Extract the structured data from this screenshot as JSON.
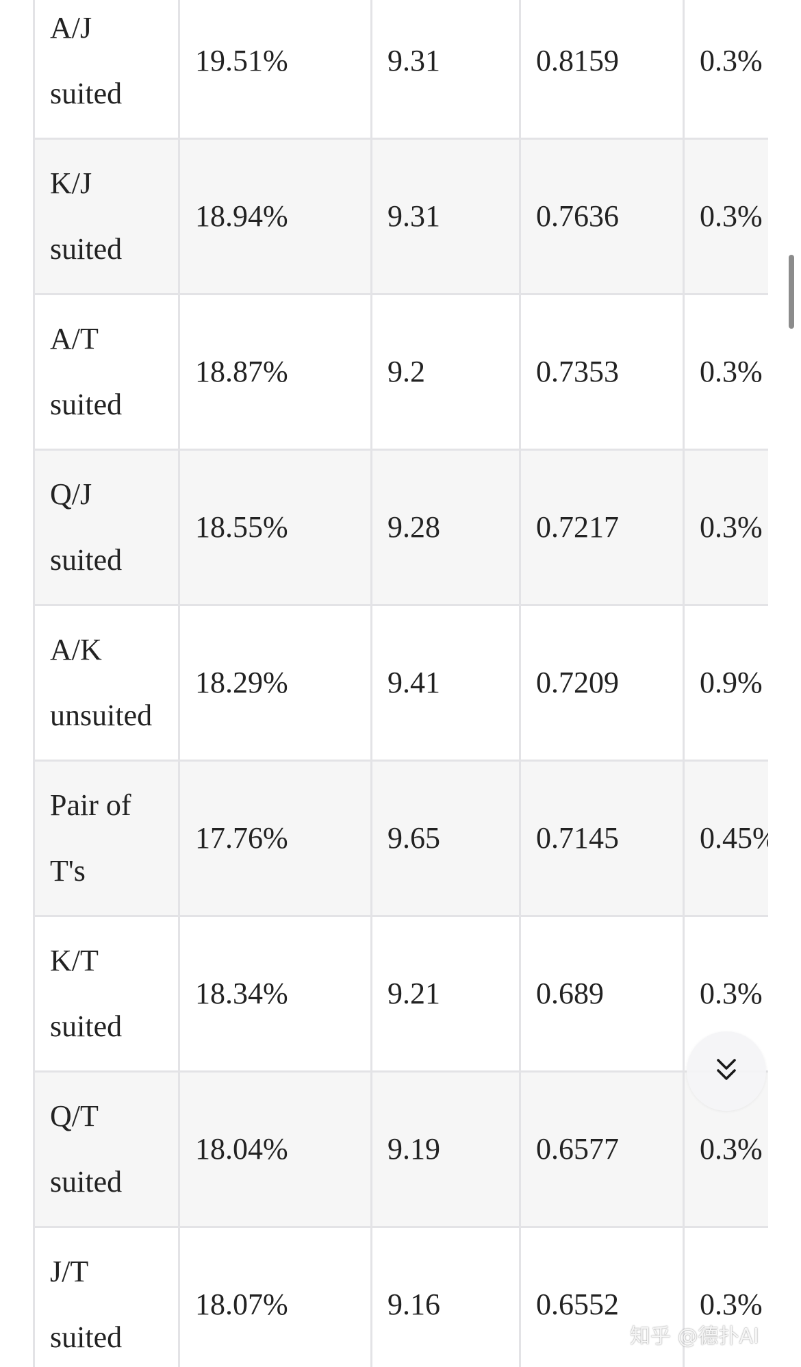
{
  "table": {
    "rows": [
      {
        "hand": "A/J suited",
        "col2": "19.51%",
        "col3": "9.31",
        "col4": "0.8159",
        "col5": "0.3%"
      },
      {
        "hand": "K/J suited",
        "col2": "18.94%",
        "col3": "9.31",
        "col4": "0.7636",
        "col5": "0.3%"
      },
      {
        "hand": "A/T suited",
        "col2": "18.87%",
        "col3": "9.2",
        "col4": "0.7353",
        "col5": "0.3%"
      },
      {
        "hand": "Q/J suited",
        "col2": "18.55%",
        "col3": "9.28",
        "col4": "0.7217",
        "col5": "0.3%"
      },
      {
        "hand": "A/K unsuited",
        "col2": "18.29%",
        "col3": "9.41",
        "col4": "0.7209",
        "col5": "0.9%"
      },
      {
        "hand": "Pair of T's",
        "col2": "17.76%",
        "col3": "9.65",
        "col4": "0.7145",
        "col5": "0.45%"
      },
      {
        "hand": "K/T suited",
        "col2": "18.34%",
        "col3": "9.21",
        "col4": "0.689",
        "col5": "0.3%"
      },
      {
        "hand": "Q/T suited",
        "col2": "18.04%",
        "col3": "9.19",
        "col4": "0.6577",
        "col5": "0.3%"
      },
      {
        "hand": "J/T suited",
        "col2": "18.07%",
        "col3": "9.16",
        "col4": "0.6552",
        "col5": "0.3%"
      }
    ]
  },
  "scroll_down_button": {
    "icon": "double-chevron-down-icon"
  },
  "watermark": {
    "text": "知乎 @德扑AI"
  },
  "colors": {
    "border": "#e3e3e6",
    "row_alt_background": "#f6f6f6",
    "text": "#222222",
    "scrollbar": "#8c8c8c"
  }
}
